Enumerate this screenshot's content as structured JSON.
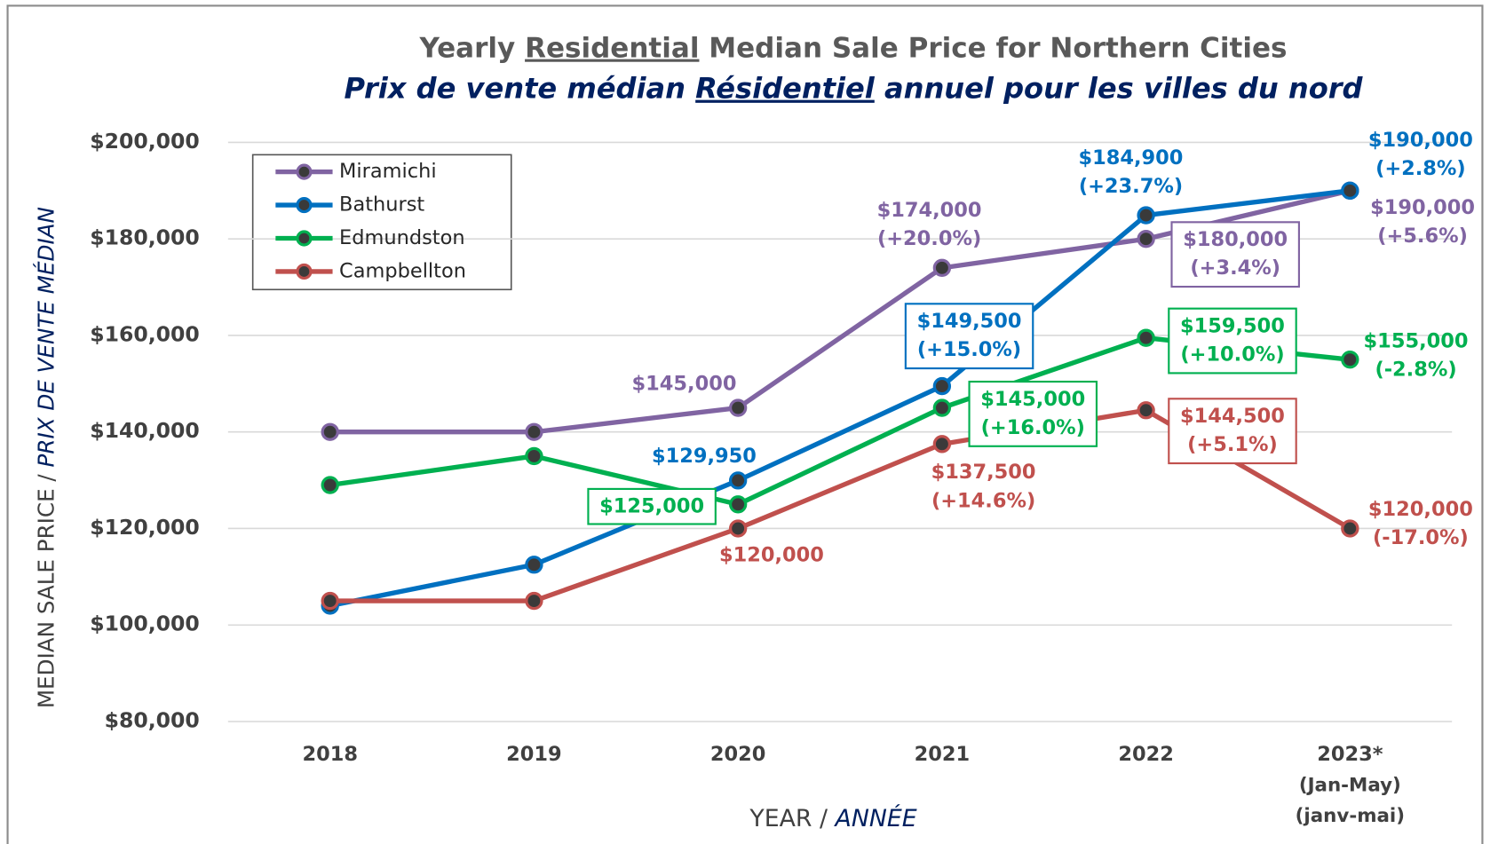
{
  "chart_data": {
    "type": "line",
    "title": [
      "Yearly ",
      "Residential",
      " Median Sale Price for Northern Cities"
    ],
    "subtitle": [
      "Prix de vente médian ",
      "Résidentiel",
      " annuel pour les villes du nord"
    ],
    "y_label": [
      "MEDIAN SALE PRICE / ",
      "PRIX DE VENTE MÉDIAN"
    ],
    "x_label": [
      "YEAR / ",
      "ANNÉE"
    ],
    "categories": [
      "2018",
      "2019",
      "2020",
      "2021",
      "2022",
      "2023*"
    ],
    "category_notes": [
      "(Jan-May)",
      "(janv-mai)"
    ],
    "ylim": [
      80000,
      200000
    ],
    "yticks": [
      {
        "value": 80000,
        "label": "$80,000"
      },
      {
        "value": 100000,
        "label": "$100,000"
      },
      {
        "value": 120000,
        "label": "$120,000"
      },
      {
        "value": 140000,
        "label": "$140,000"
      },
      {
        "value": 160000,
        "label": "$160,000"
      },
      {
        "value": 180000,
        "label": "$180,000"
      },
      {
        "value": 200000,
        "label": "$200,000"
      }
    ],
    "grid": true,
    "legend": "upper left",
    "series": [
      {
        "name": "Miramichi",
        "color": "#8064a2",
        "values": [
          140000,
          140000,
          145000,
          174000,
          180000,
          190000
        ],
        "value_labels": [
          null,
          null,
          "$145,000",
          "$174,000",
          "$180,000",
          "$190,000"
        ],
        "change_labels": [
          null,
          null,
          null,
          "(+20.0%)",
          "(+3.4%)",
          "(+5.6%)"
        ]
      },
      {
        "name": "Bathurst",
        "color": "#0070c0",
        "values": [
          104000,
          112500,
          129950,
          149500,
          184900,
          190000
        ],
        "value_labels": [
          null,
          null,
          "$129,950",
          "$149,500",
          "$184,900",
          "$190,000"
        ],
        "change_labels": [
          null,
          null,
          null,
          "(+15.0%)",
          "(+23.7%)",
          "(+2.8%)"
        ]
      },
      {
        "name": "Edmundston",
        "color": "#00b050",
        "values": [
          129000,
          135000,
          125000,
          145000,
          159500,
          155000
        ],
        "value_labels": [
          null,
          null,
          "$125,000",
          "$145,000",
          "$159,500",
          "$155,000"
        ],
        "change_labels": [
          null,
          null,
          null,
          "(+16.0%)",
          "(+10.0%)",
          "(-2.8%)"
        ]
      },
      {
        "name": "Campbellton",
        "color": "#c0504d",
        "values": [
          105000,
          105000,
          120000,
          137500,
          144500,
          120000
        ],
        "value_labels": [
          null,
          null,
          "$120,000",
          "$137,500",
          "$144,500",
          "$120,000"
        ],
        "change_labels": [
          null,
          null,
          null,
          "(+14.6%)",
          "(+5.1%)",
          "(-17.0%)"
        ]
      }
    ]
  }
}
